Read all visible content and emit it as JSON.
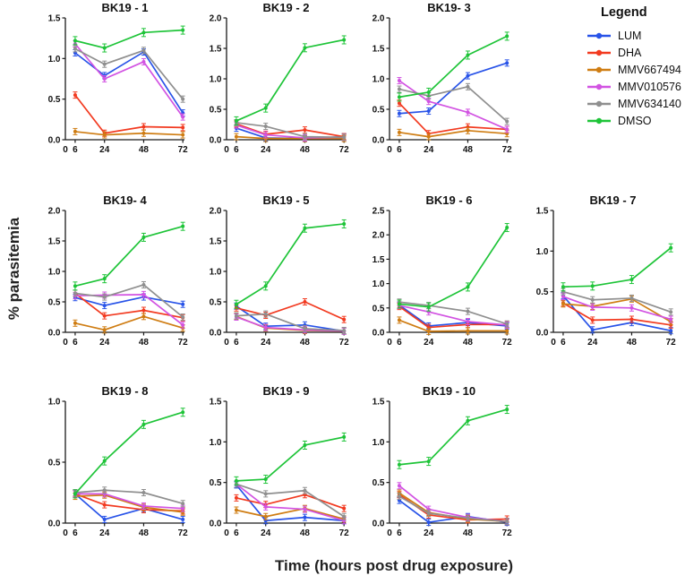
{
  "figure": {
    "ylabel": "% parasitemia",
    "xlabel": "Time (hours post drug exposure)",
    "legend_title": "Legend"
  },
  "chart_data": {
    "type": "line",
    "x": [
      6,
      24,
      48,
      72
    ],
    "xticks": [
      0,
      6,
      24,
      48,
      72
    ],
    "xlim": [
      0,
      73
    ],
    "error_bars": true,
    "grid": false,
    "legend_position": "top-right",
    "series_names": [
      "LUM",
      "DHA",
      "MMV667494",
      "MMV010576",
      "MMV634140",
      "DMSO"
    ],
    "colors": {
      "LUM": "#2853e8",
      "DHA": "#f23a20",
      "MMV667494": "#cf7d13",
      "MMV010576": "#d253e2",
      "MMV634140": "#8f8f8f",
      "DMSO": "#1ec438",
      "axis": "#1a1a1a"
    },
    "subplots": [
      {
        "title": "BK19 - 1",
        "ylim": [
          0,
          1.5
        ],
        "yticks": [
          0,
          0.5,
          1.0,
          1.5
        ],
        "series": {
          "LUM": [
            1.07,
            0.79,
            1.08,
            0.33
          ],
          "DHA": [
            0.55,
            0.08,
            0.16,
            0.15
          ],
          "MMV667494": [
            0.1,
            0.06,
            0.08,
            0.06
          ],
          "MMV010576": [
            1.18,
            0.75,
            0.96,
            0.28
          ],
          "MMV634140": [
            1.12,
            0.93,
            1.1,
            0.5
          ],
          "DMSO": [
            1.22,
            1.13,
            1.32,
            1.35
          ]
        }
      },
      {
        "title": "BK19 - 2",
        "ylim": [
          0,
          2.0
        ],
        "yticks": [
          0,
          0.5,
          1.0,
          1.5,
          2.0
        ],
        "series": {
          "LUM": [
            0.19,
            0.03,
            0.02,
            0.05
          ],
          "DHA": [
            0.26,
            0.09,
            0.16,
            0.05
          ],
          "MMV667494": [
            0.05,
            0.02,
            0.02,
            0.02
          ],
          "MMV010576": [
            0.24,
            0.08,
            0.03,
            0.04
          ],
          "MMV634140": [
            0.28,
            0.22,
            0.05,
            0.04
          ],
          "DMSO": [
            0.31,
            0.52,
            1.51,
            1.64
          ]
        }
      },
      {
        "title": "BK19- 3",
        "ylim": [
          0,
          2.0
        ],
        "yticks": [
          0,
          0.5,
          1.0,
          1.5,
          2.0
        ],
        "series": {
          "LUM": [
            0.43,
            0.47,
            1.05,
            1.26
          ],
          "DHA": [
            0.6,
            0.1,
            0.21,
            0.17
          ],
          "MMV667494": [
            0.12,
            0.05,
            0.15,
            0.1
          ],
          "MMV010576": [
            0.97,
            0.63,
            0.45,
            0.17
          ],
          "MMV634140": [
            0.83,
            0.72,
            0.87,
            0.3
          ],
          "DMSO": [
            0.7,
            0.78,
            1.39,
            1.7
          ]
        }
      },
      {
        "title": "BK19- 4",
        "ylim": [
          0,
          2.0
        ],
        "yticks": [
          0,
          0.5,
          1.0,
          1.5,
          2.0
        ],
        "series": {
          "LUM": [
            0.57,
            0.44,
            0.58,
            0.46
          ],
          "DHA": [
            0.64,
            0.27,
            0.36,
            0.24
          ],
          "MMV667494": [
            0.15,
            0.04,
            0.26,
            0.07
          ],
          "MMV010576": [
            0.6,
            0.61,
            0.62,
            0.12
          ],
          "MMV634140": [
            0.64,
            0.58,
            0.78,
            0.25
          ],
          "DMSO": [
            0.76,
            0.88,
            1.56,
            1.74
          ]
        }
      },
      {
        "title": "BK19 - 5",
        "ylim": [
          0,
          2.0
        ],
        "yticks": [
          0,
          0.5,
          1.0,
          1.5,
          2.0
        ],
        "series": {
          "LUM": [
            0.43,
            0.1,
            0.12,
            0.02
          ],
          "DHA": [
            0.4,
            0.28,
            0.5,
            0.21
          ],
          "MMV667494": [
            0.26,
            0.07,
            0.03,
            0.02
          ],
          "MMV010576": [
            0.25,
            0.08,
            0.04,
            0.02
          ],
          "MMV634140": [
            0.27,
            0.3,
            0.06,
            0.03
          ],
          "DMSO": [
            0.46,
            0.76,
            1.71,
            1.78
          ]
        }
      },
      {
        "title": "BK19 - 6",
        "ylim": [
          0,
          2.5
        ],
        "yticks": [
          0,
          0.5,
          1.0,
          1.5,
          2.0,
          2.5
        ],
        "series": {
          "LUM": [
            0.56,
            0.13,
            0.2,
            0.13
          ],
          "DHA": [
            0.53,
            0.1,
            0.16,
            0.16
          ],
          "MMV667494": [
            0.25,
            0.02,
            0.03,
            0.03
          ],
          "MMV010576": [
            0.55,
            0.42,
            0.22,
            0.15
          ],
          "MMV634140": [
            0.62,
            0.55,
            0.43,
            0.17
          ],
          "DMSO": [
            0.58,
            0.52,
            0.93,
            2.15
          ]
        }
      },
      {
        "title": "BK19 - 7",
        "ylim": [
          0,
          1.5
        ],
        "yticks": [
          0,
          0.5,
          1.0,
          1.5
        ],
        "series": {
          "LUM": [
            0.45,
            0.03,
            0.12,
            0.02
          ],
          "DHA": [
            0.36,
            0.15,
            0.16,
            0.09
          ],
          "MMV667494": [
            0.35,
            0.32,
            0.41,
            0.13
          ],
          "MMV010576": [
            0.44,
            0.31,
            0.3,
            0.16
          ],
          "MMV634140": [
            0.5,
            0.4,
            0.42,
            0.25
          ],
          "DMSO": [
            0.56,
            0.57,
            0.65,
            1.04
          ]
        }
      },
      {
        "title": "BK19 - 8",
        "ylim": [
          0,
          1.0
        ],
        "yticks": [
          0,
          0.5,
          1.0
        ],
        "series": {
          "LUM": [
            0.24,
            0.03,
            0.12,
            0.03
          ],
          "DHA": [
            0.24,
            0.15,
            0.11,
            0.1
          ],
          "MMV667494": [
            0.22,
            0.23,
            0.13,
            0.09
          ],
          "MMV010576": [
            0.24,
            0.24,
            0.14,
            0.12
          ],
          "MMV634140": [
            0.25,
            0.27,
            0.25,
            0.16
          ],
          "DMSO": [
            0.24,
            0.51,
            0.81,
            0.91
          ]
        }
      },
      {
        "title": "BK19 - 9",
        "ylim": [
          0,
          1.5
        ],
        "yticks": [
          0,
          0.5,
          1.0,
          1.5
        ],
        "series": {
          "LUM": [
            0.47,
            0.03,
            0.07,
            0.03
          ],
          "DHA": [
            0.31,
            0.23,
            0.35,
            0.18
          ],
          "MMV667494": [
            0.16,
            0.08,
            0.18,
            0.05
          ],
          "MMV010576": [
            0.48,
            0.2,
            0.17,
            0.03
          ],
          "MMV634140": [
            0.48,
            0.36,
            0.4,
            0.08
          ],
          "DMSO": [
            0.52,
            0.54,
            0.96,
            1.06
          ]
        }
      },
      {
        "title": "BK19 - 10",
        "ylim": [
          0,
          1.5
        ],
        "yticks": [
          0,
          0.5,
          1.0,
          1.5
        ],
        "series": {
          "LUM": [
            0.28,
            0.01,
            0.08,
            0.01
          ],
          "DHA": [
            0.35,
            0.1,
            0.04,
            0.05
          ],
          "MMV667494": [
            0.37,
            0.13,
            0.05,
            0.02
          ],
          "MMV010576": [
            0.46,
            0.17,
            0.07,
            0.02
          ],
          "MMV634140": [
            0.33,
            0.12,
            0.06,
            0.02
          ],
          "DMSO": [
            0.72,
            0.76,
            1.26,
            1.4
          ]
        }
      }
    ]
  }
}
